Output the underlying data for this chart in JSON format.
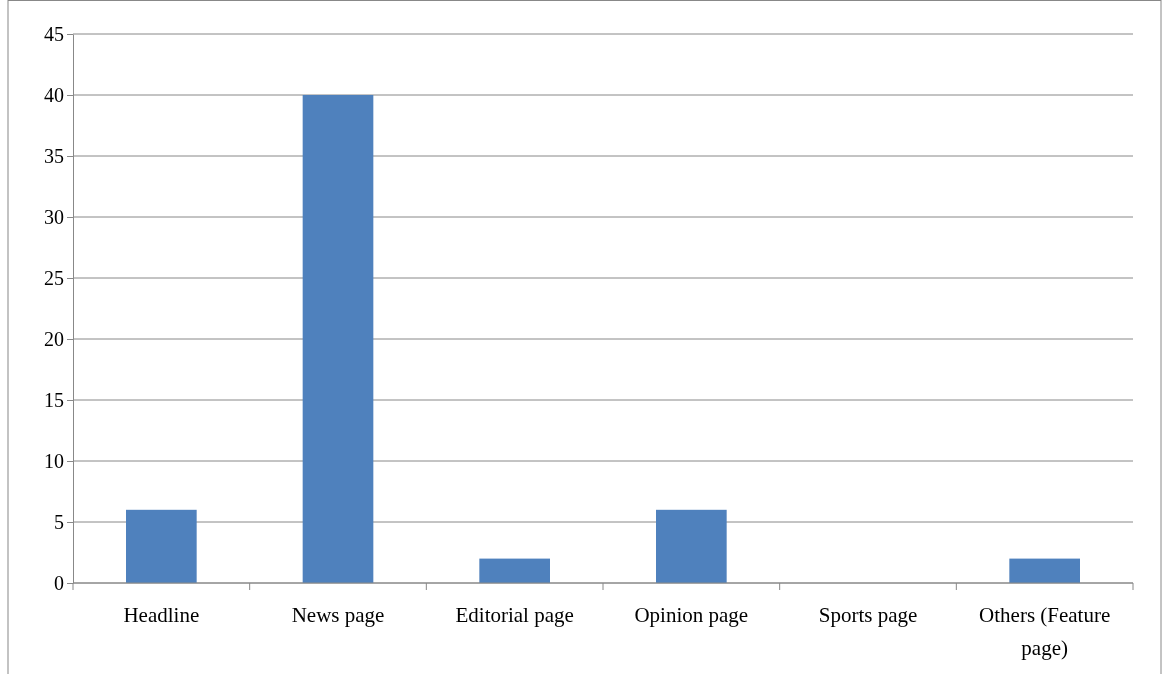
{
  "chart_data": {
    "type": "bar",
    "categories": [
      "Headline",
      "News page",
      "Editorial page",
      "Opinion page",
      "Sports page",
      "Others (Feature page)"
    ],
    "values": [
      6,
      40,
      2,
      6,
      0,
      2
    ],
    "color": "#4f81bd",
    "ylim": [
      0,
      45
    ],
    "yticks": [
      0,
      5,
      10,
      15,
      20,
      25,
      30,
      35,
      40,
      45
    ],
    "grid": "y"
  }
}
